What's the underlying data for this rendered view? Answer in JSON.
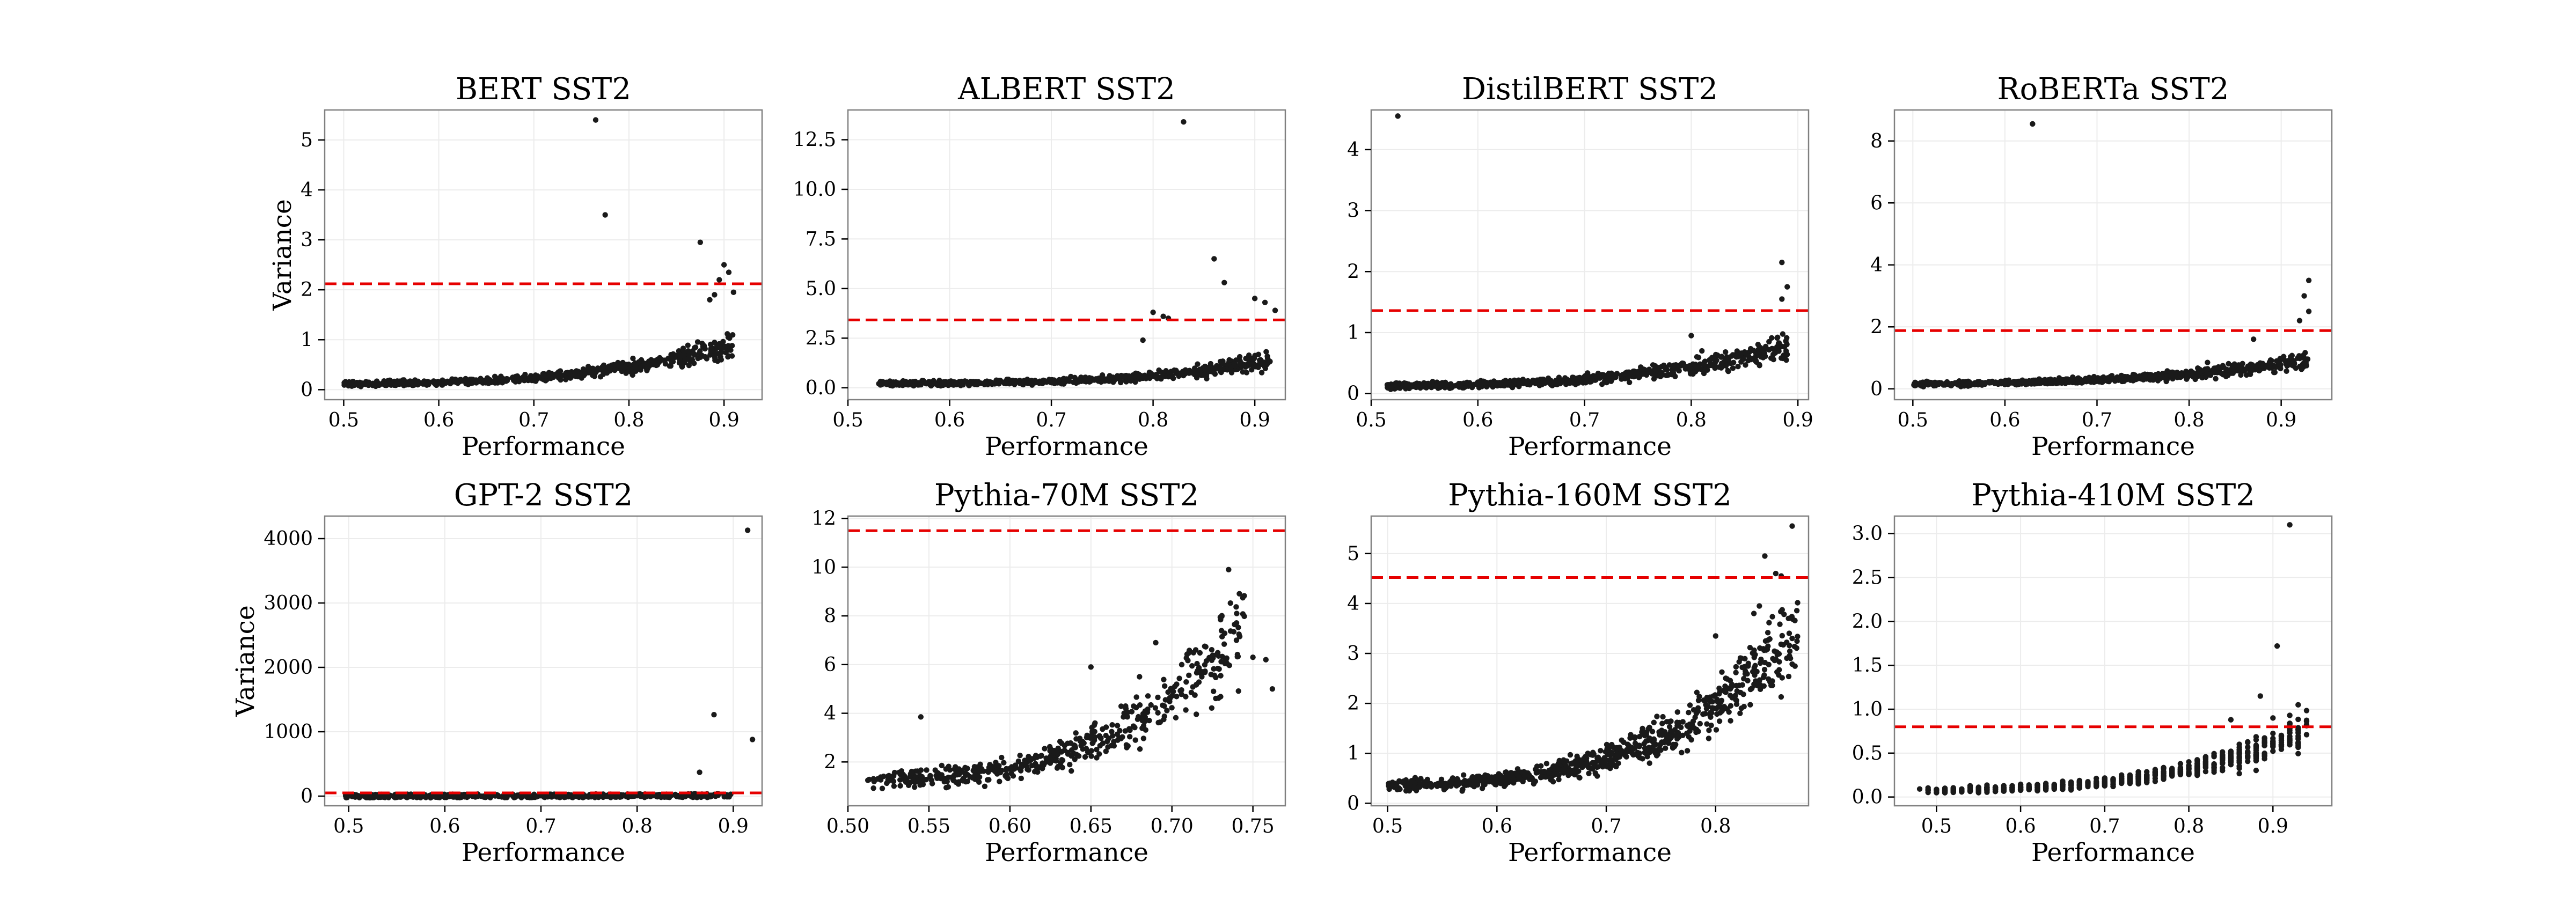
{
  "figure": {
    "background": "#ffffff",
    "point_color": "#1a1a1a",
    "threshold_color": "#e60000",
    "grid_color": "#ececec",
    "frame_color": "#808080"
  },
  "chart_data": [
    {
      "type": "scatter",
      "id": "bert",
      "title": "BERT SST2",
      "xlabel": "Performance",
      "ylabel": "Variance",
      "xlim": [
        0.48,
        0.94
      ],
      "ylim": [
        -0.2,
        5.6
      ],
      "xticks": [
        0.5,
        0.6,
        0.7,
        0.8,
        0.9
      ],
      "xtick_labels": [
        "0.5",
        "0.6",
        "0.7",
        "0.8",
        "0.9"
      ],
      "yticks": [
        0,
        1,
        2,
        3,
        4,
        5
      ],
      "ytick_labels": [
        "0",
        "1",
        "2",
        "3",
        "4",
        "5"
      ],
      "threshold": 2.12,
      "trend": {
        "x0": 0.5,
        "x1": 0.91,
        "y0": 0.05,
        "k": 0.6,
        "spread": 0.25,
        "density": 0.72,
        "n": 650,
        "wx": 1.0,
        "noise": 0.3
      },
      "outliers": [
        [
          0.765,
          5.4
        ],
        [
          0.775,
          3.5
        ],
        [
          0.875,
          2.95
        ],
        [
          0.9,
          2.5
        ],
        [
          0.905,
          2.35
        ],
        [
          0.895,
          2.2
        ],
        [
          0.91,
          1.95
        ],
        [
          0.885,
          1.8
        ],
        [
          0.89,
          1.9
        ]
      ],
      "seed": 11
    },
    {
      "type": "scatter",
      "id": "albert",
      "title": "ALBERT SST2",
      "xlabel": "Performance",
      "ylabel": "",
      "xlim": [
        0.5,
        0.93
      ],
      "ylim": [
        -0.6,
        14.0
      ],
      "xticks": [
        0.5,
        0.6,
        0.7,
        0.8,
        0.9
      ],
      "xtick_labels": [
        "0.5",
        "0.6",
        "0.7",
        "0.8",
        "0.9"
      ],
      "yticks": [
        0,
        2.5,
        5,
        7.5,
        10,
        12.5
      ],
      "ytick_labels": [
        "0.0",
        "2.5",
        "5.0",
        "7.5",
        "10.0",
        "12.5"
      ],
      "threshold": 3.42,
      "trend": {
        "x0": 0.53,
        "x1": 0.915,
        "y0": 0.2,
        "k": 0.7,
        "spread": 0.5,
        "density": 0.28,
        "n": 620,
        "wx": 1.0,
        "noise": 0.35
      },
      "outliers": [
        [
          0.83,
          13.4
        ],
        [
          0.86,
          6.5
        ],
        [
          0.87,
          5.3
        ],
        [
          0.9,
          4.5
        ],
        [
          0.91,
          4.3
        ],
        [
          0.8,
          3.8
        ],
        [
          0.81,
          3.6
        ],
        [
          0.815,
          3.5
        ],
        [
          0.79,
          2.4
        ],
        [
          0.92,
          3.9
        ]
      ],
      "seed": 23
    },
    {
      "type": "scatter",
      "id": "distilbert",
      "title": "DistilBERT SST2",
      "xlabel": "Performance",
      "ylabel": "",
      "xlim": [
        0.5,
        0.91
      ],
      "ylim": [
        -0.1,
        4.65
      ],
      "xticks": [
        0.5,
        0.6,
        0.7,
        0.8,
        0.9
      ],
      "xtick_labels": [
        "0.5",
        "0.6",
        "0.7",
        "0.8",
        "0.9"
      ],
      "yticks": [
        0,
        1,
        2,
        3,
        4
      ],
      "ytick_labels": [
        "0",
        "1",
        "2",
        "3",
        "4"
      ],
      "threshold": 1.36,
      "trend": {
        "x0": 0.515,
        "x1": 0.89,
        "y0": 0.05,
        "k": 0.5,
        "spread": 0.22,
        "density": 0.9,
        "n": 720,
        "wx": 1.2,
        "noise": 0.3
      },
      "outliers": [
        [
          0.525,
          4.55
        ],
        [
          0.885,
          2.15
        ],
        [
          0.89,
          1.75
        ],
        [
          0.885,
          1.55
        ],
        [
          0.8,
          0.95
        ],
        [
          0.81,
          0.7
        ]
      ],
      "seed": 37
    },
    {
      "type": "scatter",
      "id": "roberta",
      "title": "RoBERTa SST2",
      "xlabel": "Performance",
      "ylabel": "",
      "xlim": [
        0.48,
        0.955
      ],
      "ylim": [
        -0.35,
        9.0
      ],
      "xticks": [
        0.5,
        0.6,
        0.7,
        0.8,
        0.9
      ],
      "xtick_labels": [
        "0.5",
        "0.6",
        "0.7",
        "0.8",
        "0.9"
      ],
      "yticks": [
        0,
        2,
        4,
        6,
        8
      ],
      "ytick_labels": [
        "0",
        "2",
        "4",
        "6",
        "8"
      ],
      "threshold": 1.88,
      "trend": {
        "x0": 0.5,
        "x1": 0.93,
        "y0": 0.06,
        "k": 0.55,
        "spread": 0.35,
        "density": 0.75,
        "n": 700,
        "wx": 1.0,
        "noise": 0.3
      },
      "outliers": [
        [
          0.63,
          8.55
        ],
        [
          0.93,
          3.5
        ],
        [
          0.925,
          3.0
        ],
        [
          0.93,
          2.5
        ],
        [
          0.92,
          2.2
        ],
        [
          0.82,
          0.85
        ],
        [
          0.87,
          1.6
        ]
      ],
      "seed": 41
    },
    {
      "type": "scatter",
      "id": "gpt2",
      "title": "GPT-2  SST2",
      "xlabel": "Performance",
      "ylabel": "Variance",
      "xlim": [
        0.475,
        0.93
      ],
      "ylim": [
        -150,
        4350
      ],
      "xticks": [
        0.5,
        0.6,
        0.7,
        0.8,
        0.9
      ],
      "xtick_labels": [
        "0.5",
        "0.6",
        "0.7",
        "0.8",
        "0.9"
      ],
      "yticks": [
        0,
        1000,
        2000,
        3000,
        4000
      ],
      "ytick_labels": [
        "0",
        "1000",
        "2000",
        "3000",
        "4000"
      ],
      "threshold": 50,
      "trend": {
        "x0": 0.495,
        "x1": 0.9,
        "y0": 3,
        "k": 4,
        "spread": 8,
        "density": 0.1,
        "n": 520,
        "wx": 1.0,
        "noise": 0.5
      },
      "outliers": [
        [
          0.915,
          4130
        ],
        [
          0.88,
          1265
        ],
        [
          0.92,
          880
        ],
        [
          0.865,
          370
        ],
        [
          0.86,
          40
        ],
        [
          0.85,
          20
        ]
      ],
      "seed": 53
    },
    {
      "type": "scatter",
      "id": "pythia70m",
      "title": "Pythia-70M SST2",
      "xlabel": "Performance",
      "ylabel": "",
      "xlim": [
        0.5,
        0.77
      ],
      "ylim": [
        0.2,
        12.1
      ],
      "xticks": [
        0.5,
        0.55,
        0.6,
        0.65,
        0.7,
        0.75
      ],
      "xtick_labels": [
        "0.50",
        "0.55",
        "0.60",
        "0.65",
        "0.70",
        "0.75"
      ],
      "yticks": [
        2,
        4,
        6,
        8,
        10,
        12
      ],
      "ytick_labels": [
        "2",
        "4",
        "6",
        "8",
        "10",
        "12"
      ],
      "threshold": 11.5,
      "trend": {
        "x0": 0.51,
        "x1": 0.745,
        "y0": 1.15,
        "k": 4.6,
        "spread": 1.9,
        "density": 0.35,
        "n": 480,
        "wx": 0.85,
        "noise": 0.3
      },
      "outliers": [
        [
          0.735,
          9.9
        ],
        [
          0.74,
          8.1
        ],
        [
          0.75,
          6.3
        ],
        [
          0.758,
          6.2
        ],
        [
          0.762,
          5.0
        ],
        [
          0.69,
          6.9
        ],
        [
          0.68,
          5.5
        ],
        [
          0.65,
          5.9
        ],
        [
          0.545,
          3.85
        ]
      ],
      "seed": 67
    },
    {
      "type": "scatter",
      "id": "pythia160m",
      "title": "Pythia-160M SST2",
      "xlabel": "Performance",
      "ylabel": "",
      "xlim": [
        0.485,
        0.885
      ],
      "ylim": [
        -0.05,
        5.75
      ],
      "xticks": [
        0.5,
        0.6,
        0.7,
        0.8
      ],
      "xtick_labels": [
        "0.5",
        "0.6",
        "0.7",
        "0.8"
      ],
      "yticks": [
        0,
        1,
        2,
        3,
        4,
        5
      ],
      "ytick_labels": [
        "0",
        "1",
        "2",
        "3",
        "4",
        "5"
      ],
      "threshold": 4.52,
      "trend": {
        "x0": 0.5,
        "x1": 0.875,
        "y0": 0.3,
        "k": 2.0,
        "spread": 1.1,
        "density": 0.35,
        "n": 800,
        "wx": 0.9,
        "noise": 0.3
      },
      "outliers": [
        [
          0.87,
          5.55
        ],
        [
          0.845,
          4.95
        ],
        [
          0.855,
          4.6
        ],
        [
          0.86,
          4.55
        ],
        [
          0.84,
          3.95
        ],
        [
          0.835,
          3.8
        ],
        [
          0.87,
          3.3
        ],
        [
          0.8,
          3.35
        ]
      ],
      "seed": 79
    },
    {
      "type": "scatter",
      "id": "pythia410m",
      "title": "Pythia-410M SST2",
      "xlabel": "Performance",
      "ylabel": "",
      "xlim": [
        0.45,
        0.97
      ],
      "ylim": [
        -0.1,
        3.2
      ],
      "xticks": [
        0.5,
        0.6,
        0.7,
        0.8,
        0.9
      ],
      "xtick_labels": [
        "0.5",
        "0.6",
        "0.7",
        "0.8",
        "0.9"
      ],
      "yticks": [
        0,
        0.5,
        1,
        1.5,
        2,
        2.5,
        3
      ],
      "ytick_labels": [
        "0.0",
        "0.5",
        "1.0",
        "1.5",
        "2.0",
        "2.5",
        "3.0"
      ],
      "threshold": 0.8,
      "trend": {
        "x0": 0.48,
        "x1": 0.94,
        "y0": 0.04,
        "k": 0.35,
        "spread": 0.35,
        "density": 0.4,
        "n": 700,
        "wx": 0.8,
        "noise": 0.3,
        "quantize": 0.01
      },
      "outliers": [
        [
          0.92,
          3.1
        ],
        [
          0.905,
          1.72
        ],
        [
          0.885,
          1.15
        ],
        [
          0.93,
          1.05
        ],
        [
          0.92,
          0.93
        ],
        [
          0.9,
          0.9
        ],
        [
          0.85,
          0.88
        ]
      ],
      "seed": 97
    }
  ]
}
